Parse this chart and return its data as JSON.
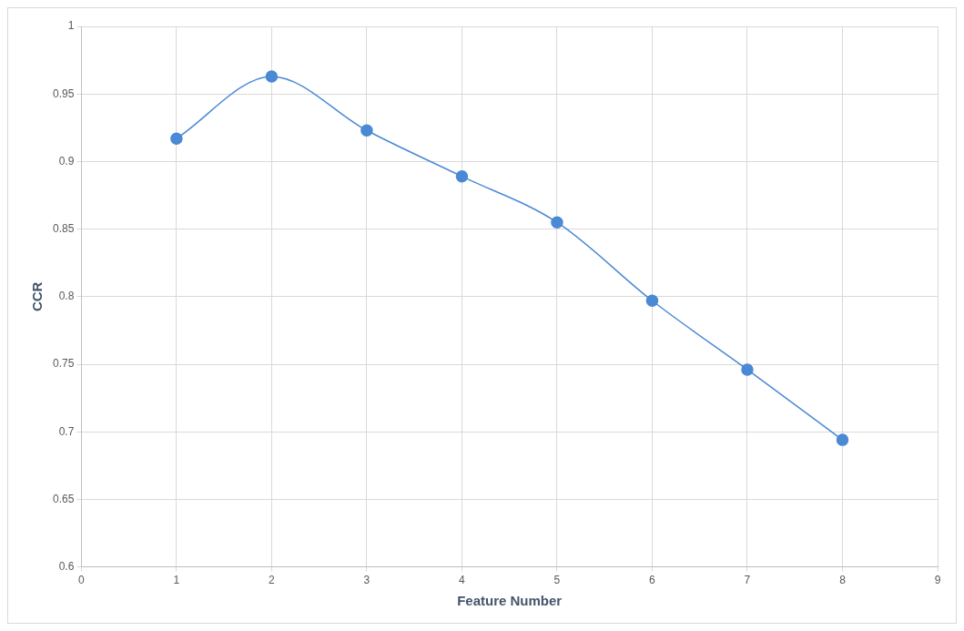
{
  "chart_data": {
    "type": "line",
    "xlabel": "Feature Number",
    "ylabel": "CCR",
    "x": [
      1,
      2,
      3,
      4,
      5,
      6,
      7,
      8
    ],
    "series": [
      {
        "color": "#4a89d4",
        "values": [
          0.917,
          0.963,
          0.923,
          0.889,
          0.855,
          0.797,
          0.746,
          0.694
        ]
      }
    ],
    "xlim": [
      0,
      9
    ],
    "xticks": [
      0,
      1,
      2,
      3,
      4,
      5,
      6,
      7,
      8,
      9
    ],
    "ylim": [
      0.6,
      1
    ],
    "yticks": [
      {
        "value": 0.6,
        "label": "0.6"
      },
      {
        "value": 0.65,
        "label": "0.65"
      },
      {
        "value": 0.7,
        "label": "0.7"
      },
      {
        "value": 0.75,
        "label": "0.75"
      },
      {
        "value": 0.8,
        "label": "0.8"
      },
      {
        "value": 0.85,
        "label": "0.85"
      },
      {
        "value": 0.9,
        "label": "0.9"
      },
      {
        "value": 0.95,
        "label": "0.95"
      },
      {
        "value": 1,
        "label": "1"
      }
    ],
    "grid": true,
    "legend": false,
    "marker": "circle",
    "line_style": "solid"
  }
}
